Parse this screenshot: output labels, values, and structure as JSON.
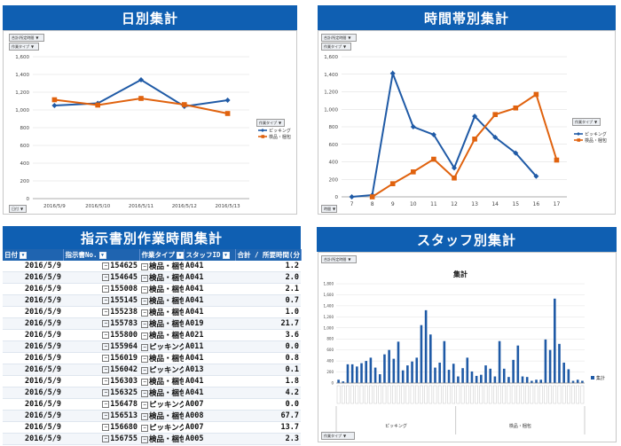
{
  "daily": {
    "title": "日別集計",
    "btn_field": "合計/所定時間",
    "btn_task": "作業タイプ",
    "btn_axis": "日付",
    "y_ticks": [
      "0",
      "200",
      "400",
      "600",
      "800",
      "1,000",
      "1,200",
      "1,400",
      "1,600"
    ],
    "legend_title": "作業タイプ",
    "legend": [
      "ピッキング",
      "検品・梱包"
    ]
  },
  "hourly": {
    "title": "時間帯別集計",
    "btn_field": "合計/所定時間",
    "btn_task": "作業タイプ",
    "btn_axis": "時間",
    "y_ticks": [
      "0",
      "200",
      "400",
      "600",
      "800",
      "1,000",
      "1,200",
      "1,400",
      "1,600"
    ],
    "legend_title": "作業タイプ",
    "legend": [
      "ピッキング",
      "検品・梱包"
    ]
  },
  "staff": {
    "title": "スタッフ別集計",
    "btn_field": "合計/所定時間",
    "btn_bottom": "作業タイプ",
    "chart_title": "集計",
    "legend": "集計",
    "y_ticks": [
      "0",
      "200",
      "400",
      "600",
      "800",
      "1,000",
      "1,200",
      "1,400",
      "1,600",
      "1,800"
    ],
    "group_labels": [
      "ピッキング",
      "検品・梱包"
    ]
  },
  "table": {
    "title": "指示書別作業時間集計",
    "headers": [
      "日付",
      "指示書No.",
      "作業タイプ",
      "スタッフID",
      "合計 / 所要時間(分)"
    ],
    "rows": [
      [
        "2016/5/9",
        "154625",
        "検品・梱包",
        "A041",
        "1.2"
      ],
      [
        "2016/5/9",
        "154645",
        "検品・梱包",
        "A041",
        "2.0"
      ],
      [
        "2016/5/9",
        "155008",
        "検品・梱包",
        "A041",
        "2.1"
      ],
      [
        "2016/5/9",
        "155145",
        "検品・梱包",
        "A041",
        "0.7"
      ],
      [
        "2016/5/9",
        "155238",
        "検品・梱包",
        "A041",
        "1.0"
      ],
      [
        "2016/5/9",
        "155783",
        "検品・梱包",
        "A019",
        "21.7"
      ],
      [
        "2016/5/9",
        "155800",
        "検品・梱包",
        "A021",
        "3.6"
      ],
      [
        "2016/5/9",
        "155964",
        "ピッキング",
        "A011",
        "0.0"
      ],
      [
        "2016/5/9",
        "156019",
        "検品・梱包",
        "A041",
        "0.8"
      ],
      [
        "2016/5/9",
        "156042",
        "ピッキング",
        "A013",
        "0.1"
      ],
      [
        "2016/5/9",
        "156303",
        "検品・梱包",
        "A041",
        "1.8"
      ],
      [
        "2016/5/9",
        "156325",
        "検品・梱包",
        "A041",
        "4.2"
      ],
      [
        "2016/5/9",
        "156478",
        "ピッキング",
        "A007",
        "0.0"
      ],
      [
        "2016/5/9",
        "156513",
        "検品・梱包",
        "A008",
        "67.7"
      ],
      [
        "2016/5/9",
        "156680",
        "ピッキング",
        "A007",
        "13.7"
      ],
      [
        "2016/5/9",
        "156755",
        "検品・梱包",
        "A005",
        "2.3"
      ]
    ]
  },
  "chart_data": [
    {
      "type": "line",
      "title": "日別集計",
      "x": [
        "2016/5/9",
        "2016/5/10",
        "2016/5/11",
        "2016/5/12",
        "2016/5/13"
      ],
      "ylim": [
        0,
        1600
      ],
      "series": [
        {
          "name": "ピッキング",
          "values": [
            1050,
            1075,
            1340,
            1040,
            1110
          ],
          "color": "#1f5aa6"
        },
        {
          "name": "検品・梱包",
          "values": [
            1115,
            1055,
            1130,
            1060,
            960
          ],
          "color": "#e0620e"
        }
      ],
      "legend_position": "right"
    },
    {
      "type": "line",
      "title": "時間帯別集計",
      "x": [
        "7",
        "8",
        "9",
        "10",
        "11",
        "12",
        "13",
        "14",
        "15",
        "16",
        "17"
      ],
      "ylim": [
        0,
        1600
      ],
      "series": [
        {
          "name": "ピッキング",
          "values": [
            0,
            20,
            1410,
            800,
            710,
            330,
            920,
            680,
            500,
            235,
            null
          ],
          "color": "#1f5aa6"
        },
        {
          "name": "検品・梱包",
          "values": [
            null,
            0,
            150,
            285,
            430,
            215,
            660,
            940,
            1015,
            1170,
            420
          ],
          "color": "#e0620e"
        }
      ],
      "legend_position": "right"
    },
    {
      "type": "bar",
      "title": "集計",
      "ylim": [
        0,
        1800
      ],
      "series": [
        {
          "name": "集計",
          "color": "#1f5aa6",
          "values": [
            60,
            30,
            340,
            340,
            300,
            360,
            400,
            460,
            280,
            160,
            520,
            600,
            440,
            750,
            230,
            320,
            390,
            460,
            1050,
            1320,
            880,
            280,
            370,
            760,
            240,
            350,
            120,
            270,
            460,
            210,
            130,
            150,
            320,
            260,
            120,
            760,
            260,
            110,
            420,
            680,
            120,
            110,
            40,
            60,
            60,
            790,
            600,
            1530,
            710,
            370,
            250,
            40,
            60,
            40
          ]
        }
      ],
      "group_labels": [
        "ピッキング",
        "検品・梱包"
      ],
      "legend_position": "right"
    }
  ]
}
